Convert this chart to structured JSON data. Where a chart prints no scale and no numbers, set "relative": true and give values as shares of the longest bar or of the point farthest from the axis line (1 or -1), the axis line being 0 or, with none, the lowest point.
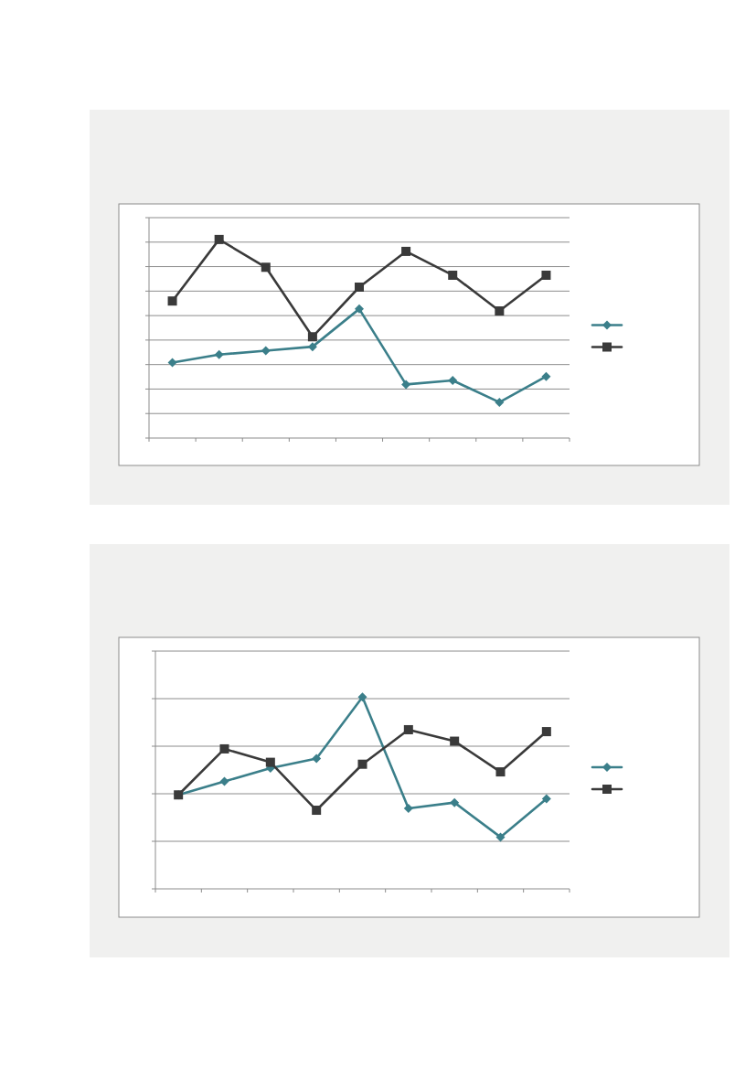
{
  "chart_data": [
    {
      "type": "line",
      "relative": true,
      "grid": "y",
      "categories": [
        null,
        null,
        null,
        null,
        null,
        null,
        null,
        null,
        null
      ],
      "series": [
        {
          "color": "#3b7f8a",
          "marker": "diamond",
          "values": [
            0.38,
            0.42,
            0.44,
            0.46,
            0.65,
            0.27,
            0.29,
            0.18,
            0.31
          ]
        },
        {
          "color": "#3a3a3a",
          "marker": "square",
          "values": [
            0.69,
            1,
            0.86,
            0.51,
            0.76,
            0.94,
            0.82,
            0.64,
            0.82
          ]
        }
      ]
    },
    {
      "type": "line",
      "relative": true,
      "grid": "y",
      "categories": [
        null,
        null,
        null,
        null,
        null,
        null,
        null,
        null,
        null
      ],
      "series": [
        {
          "color": "#3b7f8a",
          "marker": "diamond",
          "values": [
            0.49,
            0.56,
            0.63,
            0.68,
            1,
            0.42,
            0.45,
            0.27,
            0.47
          ]
        },
        {
          "color": "#3a3a3a",
          "marker": "square",
          "values": [
            0.49,
            0.73,
            0.66,
            0.41,
            0.65,
            0.83,
            0.77,
            0.61,
            0.82
          ]
        }
      ]
    }
  ]
}
